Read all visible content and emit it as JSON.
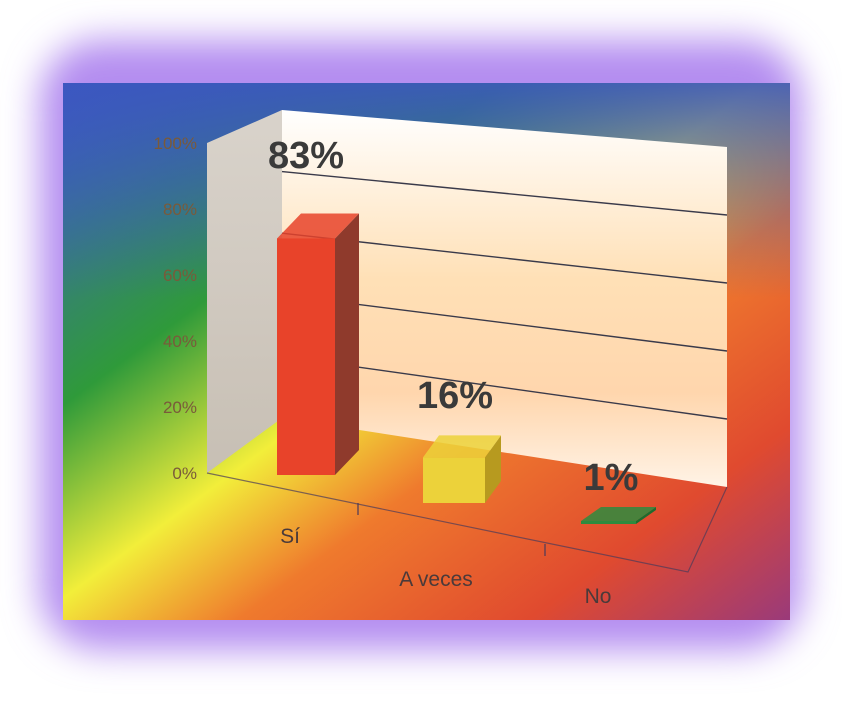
{
  "chart_data": {
    "type": "bar",
    "three_d": true,
    "categories": [
      "Sí",
      "A veces",
      "No"
    ],
    "series": [
      {
        "values": [
          83,
          16,
          1
        ]
      }
    ],
    "data_labels": [
      "83%",
      "16%",
      "1%"
    ],
    "y_ticks": [
      "0%",
      "20%",
      "40%",
      "60%",
      "80%",
      "100%"
    ],
    "ylim": [
      0,
      100
    ],
    "y_unit": "%",
    "grid": true,
    "legend": "none",
    "bar_colors": [
      "#e8432a",
      "#ecd23a",
      "#2e8b3e"
    ],
    "bar_side_colors": [
      "#8f3a2c",
      "#b79a1f",
      "#1f6b2e"
    ],
    "background_colors": {
      "frame_glow": "#b48df0",
      "plot_gradient": [
        "#3f5fc4",
        "#2f9a3a",
        "#f2ee3a",
        "#ef7a2d",
        "#e04a2f",
        "#9a3a7a"
      ],
      "back_wall": "#fff6e8",
      "side_wall": "#d8cfc4"
    }
  }
}
